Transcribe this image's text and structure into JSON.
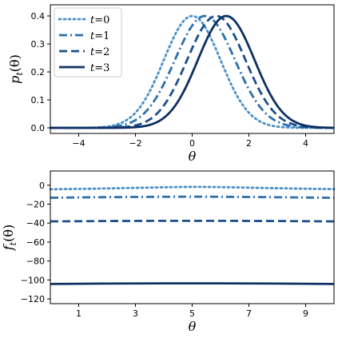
{
  "chart_data": [
    {
      "type": "line",
      "ylabel": "p_t(θ)",
      "ylabel_main": "p",
      "ylabel_sub": "t",
      "ylabel_arg": "(θ)",
      "xlabel": "θ",
      "xlim": [
        -5,
        5
      ],
      "ylim": [
        -0.02,
        0.44
      ],
      "xticks": [
        -4,
        -2,
        0,
        2,
        4
      ],
      "xtick_labels": [
        "−4",
        "−2",
        "0",
        "2",
        "4"
      ],
      "yticks": [
        0.0,
        0.1,
        0.2,
        0.3,
        0.4
      ],
      "ytick_labels": [
        "0.0",
        "0.1",
        "0.2",
        "0.3",
        "0.4"
      ],
      "grid": false,
      "legend_position": "top-left",
      "series": [
        {
          "name": "t = 0",
          "legend_var": "t",
          "legend_eq": "=0",
          "mean": 0.0,
          "std": 1.0,
          "color": "#4a90c9",
          "style": "dotted"
        },
        {
          "name": "t = 1",
          "legend_var": "t",
          "legend_eq": "=1",
          "mean": 0.45,
          "std": 1.06,
          "color": "#2b6fad",
          "style": "dashdot"
        },
        {
          "name": "t = 2",
          "legend_var": "t",
          "legend_eq": "=2",
          "mean": 0.85,
          "std": 1.03,
          "color": "#1a4f8c",
          "style": "dashed"
        },
        {
          "name": "t = 3",
          "legend_var": "t",
          "legend_eq": "=3",
          "mean": 1.2,
          "std": 1.0,
          "color": "#0e2f63",
          "style": "solid"
        }
      ]
    },
    {
      "type": "line",
      "ylabel": "f_t(θ)",
      "ylabel_main": "f",
      "ylabel_sub": "t",
      "ylabel_arg": "(θ)",
      "xlabel": "θ",
      "xlim": [
        0,
        10
      ],
      "ylim": [
        -125,
        15
      ],
      "xticks": [
        1,
        3,
        5,
        7,
        9
      ],
      "xtick_labels": [
        "1",
        "3",
        "5",
        "7",
        "9"
      ],
      "yticks": [
        0,
        -20,
        -40,
        -60,
        -80,
        -100,
        -120
      ],
      "ytick_labels": [
        "0",
        "−20",
        "−40",
        "−60",
        "−80",
        "−100",
        "−120"
      ],
      "grid": false,
      "series": [
        {
          "name": "t = 0",
          "x": [
            0,
            1,
            2,
            3,
            4,
            5,
            6,
            7,
            8,
            9,
            10
          ],
          "y": [
            -4.3,
            -3.9,
            -3.4,
            -2.8,
            -2.2,
            -1.7,
            -2.0,
            -2.6,
            -3.2,
            -3.7,
            -4.1
          ],
          "color": "#4a90c9",
          "style": "dotted"
        },
        {
          "name": "t = 1",
          "x": [
            0,
            1,
            2,
            3,
            4,
            5,
            6,
            7,
            8,
            9,
            10
          ],
          "y": [
            -13.2,
            -12.9,
            -12.6,
            -12.4,
            -12.2,
            -12.1,
            -12.2,
            -12.4,
            -12.7,
            -13.0,
            -13.3
          ],
          "color": "#2b6fad",
          "style": "dashdot"
        },
        {
          "name": "t = 2",
          "x": [
            0,
            1,
            2,
            3,
            4,
            5,
            6,
            7,
            8,
            9,
            10
          ],
          "y": [
            -38.2,
            -38.0,
            -37.8,
            -37.7,
            -37.6,
            -37.6,
            -37.6,
            -37.7,
            -37.8,
            -38.0,
            -38.2
          ],
          "color": "#1a4f8c",
          "style": "dashed"
        },
        {
          "name": "t = 3",
          "x": [
            0,
            1,
            2,
            3,
            4,
            5,
            6,
            7,
            8,
            9,
            10
          ],
          "y": [
            -104.2,
            -104.0,
            -103.8,
            -103.7,
            -103.6,
            -103.6,
            -103.6,
            -103.7,
            -103.8,
            -104.0,
            -104.2
          ],
          "color": "#0e2f63",
          "style": "solid"
        }
      ]
    }
  ]
}
